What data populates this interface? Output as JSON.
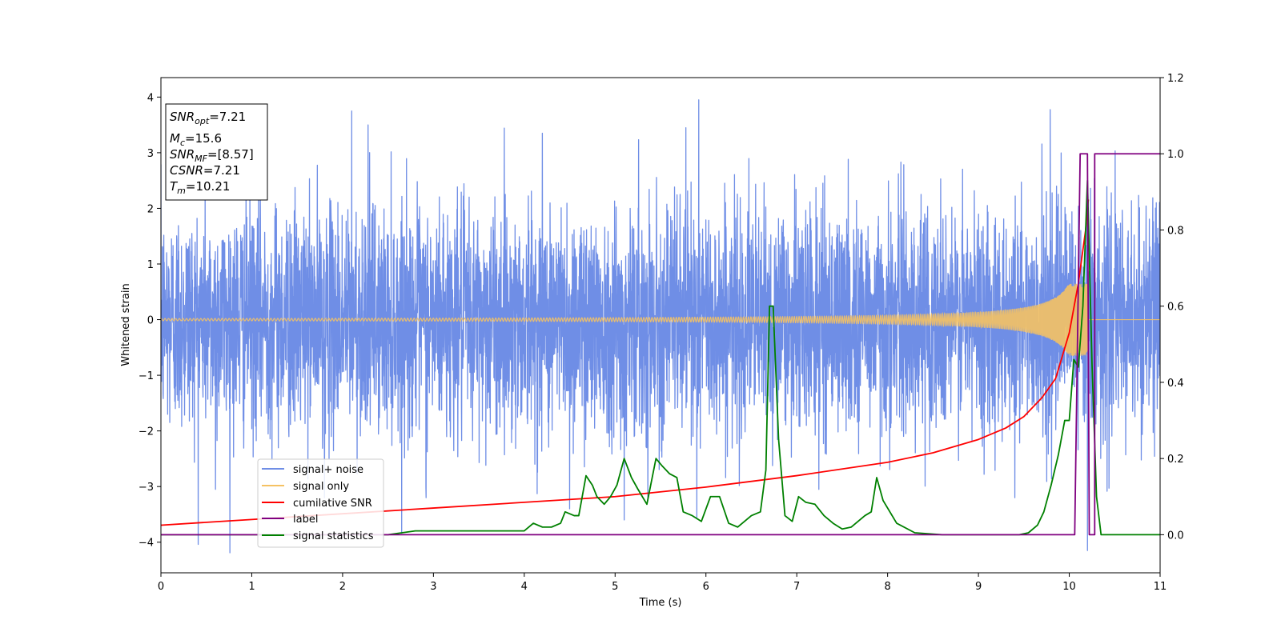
{
  "chart_data": {
    "type": "line",
    "xlabel": "Time (s)",
    "ylabel": "Whitened strain",
    "xlim": [
      0,
      11
    ],
    "ylim_left": [
      -4.55,
      4.35
    ],
    "ylim_right": [
      -0.1,
      1.2
    ],
    "x_ticks": [
      0,
      1,
      2,
      3,
      4,
      5,
      6,
      7,
      8,
      9,
      10,
      11
    ],
    "x_tick_labels": [
      "0",
      "1",
      "2",
      "3",
      "4",
      "5",
      "6",
      "7",
      "8",
      "9",
      "10",
      "11"
    ],
    "y_left_ticks": [
      -4,
      -3,
      -2,
      -1,
      0,
      1,
      2,
      3,
      4
    ],
    "y_left_tick_labels": [
      "−4",
      "−3",
      "−2",
      "−1",
      "0",
      "1",
      "2",
      "3",
      "4"
    ],
    "y_right_ticks": [
      0.0,
      0.2,
      0.4,
      0.6,
      0.8,
      1.0,
      1.2
    ],
    "y_right_tick_labels": [
      "0.0",
      "0.2",
      "0.4",
      "0.6",
      "0.8",
      "1.0",
      "1.2"
    ],
    "legend_position": "lower-left",
    "info_box": {
      "snr_opt": {
        "base": "SNR",
        "sub": "opt",
        "value": "=7.21"
      },
      "mc": {
        "base": "M",
        "sub": "c",
        "value": "=15.6"
      },
      "snr_mf": {
        "base": "SNR",
        "sub": "MF",
        "value": "=[8.57]"
      },
      "csnr": {
        "base": "CSNR",
        "value": "=7.21"
      },
      "tm": {
        "base": "T",
        "sub": "m",
        "value": "=10.21"
      }
    },
    "series": [
      {
        "name": "signal+ noise",
        "axis": "left",
        "color": "#6f8ee6",
        "description_kind": "noise",
        "noise_std": 1.0,
        "peaks": [
          {
            "x": 2.1,
            "y": 3.75
          },
          {
            "x": 2.28,
            "y": 3.5
          },
          {
            "x": 5.92,
            "y": 3.95
          },
          {
            "x": 5.78,
            "y": 3.45
          },
          {
            "x": 4.2,
            "y": 3.35
          },
          {
            "x": 10.2,
            "y": -4.15
          },
          {
            "x": 0.6,
            "y": -3.05
          },
          {
            "x": 1.8,
            "y": -3.2
          },
          {
            "x": 2.92,
            "y": -3.2
          },
          {
            "x": 4.5,
            "y": -3.4
          },
          {
            "x": 5.1,
            "y": -3.6
          },
          {
            "x": 5.9,
            "y": -3.55
          },
          {
            "x": 9.4,
            "y": -3.2
          }
        ]
      },
      {
        "name": "signal only",
        "axis": "left",
        "color": "#f5c263",
        "description_kind": "chirp",
        "start_amplitude": 0.02,
        "peak_amplitude": 0.65,
        "merger_time": 10.21
      },
      {
        "name": "cumilative SNR",
        "axis": "right",
        "color": "#ff0000",
        "x": [
          0,
          1,
          2,
          3,
          4,
          5,
          6,
          7,
          8,
          8.5,
          9,
          9.3,
          9.5,
          9.7,
          9.85,
          10.0,
          10.1,
          10.18,
          10.21
        ],
        "y": [
          0.025,
          0.04,
          0.055,
          0.07,
          0.085,
          0.1,
          0.125,
          0.155,
          0.19,
          0.215,
          0.25,
          0.28,
          0.31,
          0.36,
          0.41,
          0.53,
          0.66,
          0.8,
          0.88
        ]
      },
      {
        "name": "label",
        "axis": "right",
        "color": "#800080",
        "x": [
          0,
          10.06,
          10.12,
          10.2,
          10.22,
          10.28,
          10.28,
          11
        ],
        "y": [
          0,
          0,
          1,
          1,
          0,
          0,
          1,
          1
        ]
      },
      {
        "name": "signal statistics",
        "axis": "right",
        "color": "#008000",
        "x": [
          0,
          0.5,
          1,
          1.5,
          2,
          2.5,
          2.8,
          3.0,
          3.2,
          3.4,
          3.6,
          3.8,
          4.0,
          4.1,
          4.2,
          4.3,
          4.4,
          4.45,
          4.55,
          4.6,
          4.68,
          4.75,
          4.8,
          4.88,
          4.95,
          5.02,
          5.1,
          5.18,
          5.25,
          5.35,
          5.45,
          5.52,
          5.6,
          5.68,
          5.75,
          5.85,
          5.95,
          6.05,
          6.15,
          6.25,
          6.35,
          6.5,
          6.6,
          6.66,
          6.7,
          6.74,
          6.8,
          6.87,
          6.95,
          7.02,
          7.1,
          7.2,
          7.3,
          7.4,
          7.5,
          7.6,
          7.7,
          7.75,
          7.82,
          7.88,
          7.95,
          8.1,
          8.3,
          8.6,
          8.9,
          9.1,
          9.3,
          9.45,
          9.55,
          9.65,
          9.72,
          9.8,
          9.88,
          9.95,
          10.0,
          10.05,
          10.1,
          10.15,
          10.2,
          10.25,
          10.3,
          10.35,
          10.5,
          10.8,
          11.0
        ],
        "y": [
          0.0,
          0.0,
          0.0,
          0.0,
          0.0,
          0.0,
          0.01,
          0.01,
          0.01,
          0.01,
          0.01,
          0.01,
          0.01,
          0.03,
          0.02,
          0.02,
          0.03,
          0.06,
          0.05,
          0.05,
          0.155,
          0.13,
          0.1,
          0.08,
          0.1,
          0.13,
          0.2,
          0.15,
          0.12,
          0.08,
          0.2,
          0.18,
          0.16,
          0.15,
          0.06,
          0.05,
          0.035,
          0.1,
          0.1,
          0.03,
          0.02,
          0.05,
          0.06,
          0.17,
          0.6,
          0.6,
          0.25,
          0.05,
          0.035,
          0.1,
          0.085,
          0.08,
          0.05,
          0.03,
          0.015,
          0.02,
          0.04,
          0.05,
          0.06,
          0.15,
          0.09,
          0.03,
          0.005,
          0.0,
          0.0,
          0.0,
          0.0,
          0.0,
          0.005,
          0.025,
          0.06,
          0.13,
          0.21,
          0.3,
          0.3,
          0.46,
          0.44,
          0.6,
          0.93,
          0.45,
          0.1,
          0.0,
          0.0,
          0.0,
          0.0
        ]
      }
    ]
  }
}
